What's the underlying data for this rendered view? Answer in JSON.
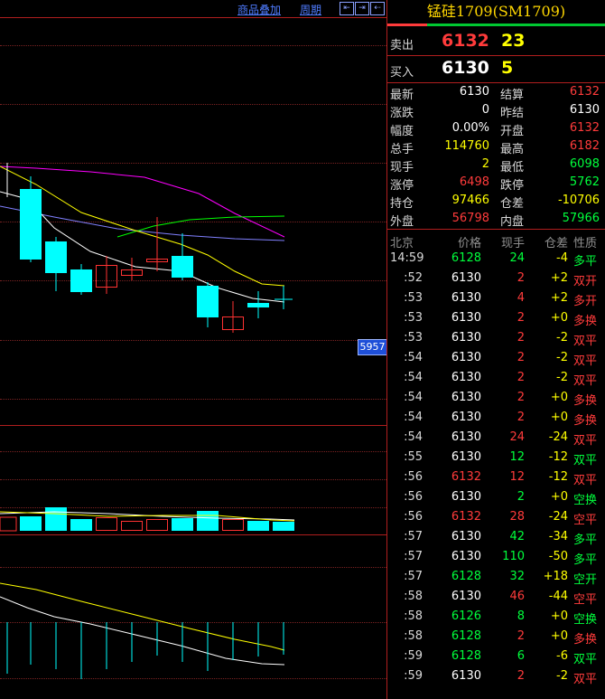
{
  "toolbar": {
    "overlay_label": "商品叠加",
    "period_label": "周期",
    "nav_buttons": [
      "⇤",
      "⇥",
      "⇠"
    ]
  },
  "chart": {
    "price_tag": "5957",
    "colors": {
      "up": "#ff3232",
      "down": "#00ffff",
      "ma1": "#ffffff",
      "ma2": "#ffff00",
      "ma3": "#ff00ff",
      "ma4": "#00ff00",
      "ma5": "#8080ff"
    }
  },
  "panel": {
    "title": "锰硅1709(SM1709)",
    "sell": {
      "label": "卖出",
      "price": "6132",
      "volume": "23"
    },
    "buy": {
      "label": "买入",
      "price": "6130",
      "volume": "5"
    },
    "stats": [
      {
        "l1": "最新",
        "v1": "6130",
        "c1": "white",
        "l2": "结算",
        "v2": "6132",
        "c2": "red"
      },
      {
        "l1": "涨跌",
        "v1": "0",
        "c1": "white",
        "l2": "昨结",
        "v2": "6130",
        "c2": "white"
      },
      {
        "l1": "幅度",
        "v1": "0.00%",
        "c1": "white",
        "l2": "开盘",
        "v2": "6132",
        "c2": "red"
      },
      {
        "l1": "总手",
        "v1": "114760",
        "c1": "yellow",
        "l2": "最高",
        "v2": "6182",
        "c2": "red"
      },
      {
        "l1": "现手",
        "v1": "2",
        "c1": "yellow",
        "l2": "最低",
        "v2": "6098",
        "c2": "green"
      },
      {
        "l1": "涨停",
        "v1": "6498",
        "c1": "red",
        "l2": "跌停",
        "v2": "5762",
        "c2": "green"
      },
      {
        "l1": "持仓",
        "v1": "97466",
        "c1": "yellow",
        "l2": "仓差",
        "v2": "-10706",
        "c2": "yellow"
      },
      {
        "l1": "外盘",
        "v1": "56798",
        "c1": "red",
        "l2": "内盘",
        "v2": "57966",
        "c2": "green"
      }
    ],
    "trade_header": {
      "time": "北京",
      "price": "价格",
      "vol": "现手",
      "chg": "仓差",
      "nature": "性质"
    },
    "trades": [
      {
        "time": "14:59",
        "price": "6128",
        "pc": "green",
        "vol": "24",
        "vc": "green",
        "chg": "-4",
        "nature": "多平",
        "nc": "green"
      },
      {
        "time": ":52",
        "price": "6130",
        "pc": "white",
        "vol": "2",
        "vc": "red",
        "chg": "+2",
        "nature": "双开",
        "nc": "red"
      },
      {
        "time": ":53",
        "price": "6130",
        "pc": "white",
        "vol": "4",
        "vc": "red",
        "chg": "+2",
        "nature": "多开",
        "nc": "red"
      },
      {
        "time": ":53",
        "price": "6130",
        "pc": "white",
        "vol": "2",
        "vc": "red",
        "chg": "+0",
        "nature": "多换",
        "nc": "red"
      },
      {
        "time": ":53",
        "price": "6130",
        "pc": "white",
        "vol": "2",
        "vc": "red",
        "chg": "-2",
        "nature": "双平",
        "nc": "red"
      },
      {
        "time": ":54",
        "price": "6130",
        "pc": "white",
        "vol": "2",
        "vc": "red",
        "chg": "-2",
        "nature": "双平",
        "nc": "red"
      },
      {
        "time": ":54",
        "price": "6130",
        "pc": "white",
        "vol": "2",
        "vc": "red",
        "chg": "-2",
        "nature": "双平",
        "nc": "red"
      },
      {
        "time": ":54",
        "price": "6130",
        "pc": "white",
        "vol": "2",
        "vc": "red",
        "chg": "+0",
        "nature": "多换",
        "nc": "red"
      },
      {
        "time": ":54",
        "price": "6130",
        "pc": "white",
        "vol": "2",
        "vc": "red",
        "chg": "+0",
        "nature": "多换",
        "nc": "red"
      },
      {
        "time": ":54",
        "price": "6130",
        "pc": "white",
        "vol": "24",
        "vc": "red",
        "chg": "-24",
        "nature": "双平",
        "nc": "red"
      },
      {
        "time": ":55",
        "price": "6130",
        "pc": "white",
        "vol": "12",
        "vc": "green",
        "chg": "-12",
        "nature": "双平",
        "nc": "green"
      },
      {
        "time": ":56",
        "price": "6132",
        "pc": "red",
        "vol": "12",
        "vc": "red",
        "chg": "-12",
        "nature": "双平",
        "nc": "red"
      },
      {
        "time": ":56",
        "price": "6130",
        "pc": "white",
        "vol": "2",
        "vc": "green",
        "chg": "+0",
        "nature": "空换",
        "nc": "green"
      },
      {
        "time": ":56",
        "price": "6132",
        "pc": "red",
        "vol": "28",
        "vc": "red",
        "chg": "-24",
        "nature": "空平",
        "nc": "red"
      },
      {
        "time": ":57",
        "price": "6130",
        "pc": "white",
        "vol": "42",
        "vc": "green",
        "chg": "-34",
        "nature": "多平",
        "nc": "green"
      },
      {
        "time": ":57",
        "price": "6130",
        "pc": "white",
        "vol": "110",
        "vc": "green",
        "chg": "-50",
        "nature": "多平",
        "nc": "green"
      },
      {
        "time": ":57",
        "price": "6128",
        "pc": "green",
        "vol": "32",
        "vc": "green",
        "chg": "+18",
        "nature": "空开",
        "nc": "green"
      },
      {
        "time": ":58",
        "price": "6130",
        "pc": "white",
        "vol": "46",
        "vc": "red",
        "chg": "-44",
        "nature": "空平",
        "nc": "red"
      },
      {
        "time": ":58",
        "price": "6126",
        "pc": "green",
        "vol": "8",
        "vc": "green",
        "chg": "+0",
        "nature": "空换",
        "nc": "green"
      },
      {
        "time": ":58",
        "price": "6128",
        "pc": "green",
        "vol": "2",
        "vc": "red",
        "chg": "+0",
        "nature": "多换",
        "nc": "red"
      },
      {
        "time": ":59",
        "price": "6128",
        "pc": "green",
        "vol": "6",
        "vc": "green",
        "chg": "-6",
        "nature": "双平",
        "nc": "green"
      },
      {
        "time": ":59",
        "price": "6130",
        "pc": "white",
        "vol": "2",
        "vc": "red",
        "chg": "-2",
        "nature": "双平",
        "nc": "red"
      }
    ]
  }
}
